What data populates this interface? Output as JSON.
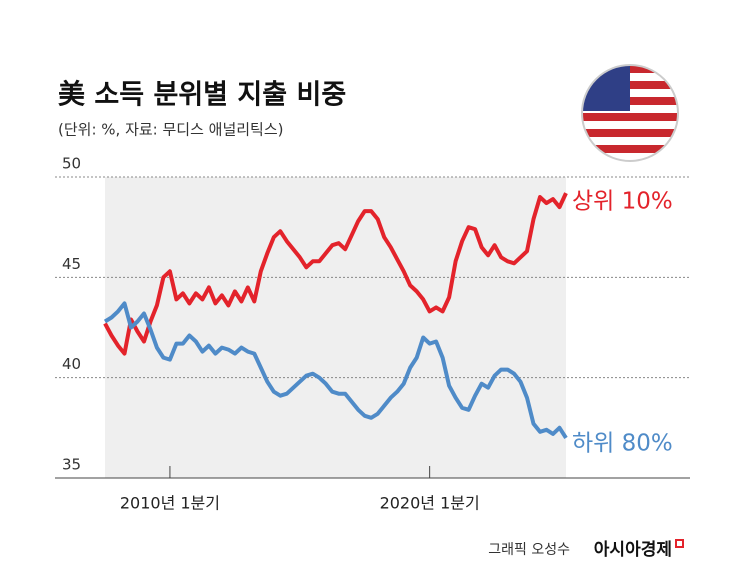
{
  "chart_data": {
    "type": "line",
    "title": "美 소득 분위별 지출 비중",
    "subtitle": "(단위: %, 자료: 무디스 애널리틱스)",
    "credit": "그래픽 오성수",
    "source_brand": "아시아경제",
    "categories": [
      null,
      null,
      null,
      null,
      null,
      null,
      null,
      null,
      null,
      null,
      "2010년 1분기",
      null,
      null,
      null,
      null,
      null,
      null,
      null,
      null,
      null,
      null,
      null,
      null,
      null,
      null,
      null,
      null,
      null,
      null,
      null,
      null,
      null,
      null,
      null,
      null,
      null,
      null,
      null,
      null,
      null,
      null,
      null,
      null,
      null,
      null,
      null,
      null,
      null,
      null,
      null,
      "2020년 1분기",
      null,
      null,
      null,
      null,
      null,
      null,
      null,
      null,
      null,
      null,
      null,
      null,
      null,
      null,
      null,
      null,
      null,
      null,
      null,
      null,
      null
    ],
    "series": [
      {
        "name": "상위 10%",
        "color": "#e3232b",
        "values": [
          42.7,
          42.1,
          41.6,
          41.2,
          42.9,
          42.3,
          41.8,
          42.8,
          43.6,
          45.0,
          45.3,
          43.9,
          44.2,
          43.7,
          44.2,
          43.9,
          44.5,
          43.7,
          44.1,
          43.6,
          44.3,
          43.8,
          44.5,
          43.8,
          45.3,
          46.2,
          47.0,
          47.3,
          46.8,
          46.4,
          46.0,
          45.5,
          45.8,
          45.8,
          46.2,
          46.6,
          46.7,
          46.4,
          47.1,
          47.8,
          48.3,
          48.3,
          47.9,
          47.0,
          46.5,
          45.9,
          45.3,
          44.6,
          44.3,
          43.9,
          43.3,
          43.5,
          43.3,
          44.0,
          45.8,
          46.8,
          47.5,
          47.4,
          46.5,
          46.1,
          46.6,
          46.0,
          45.8,
          45.7,
          46.0,
          46.3,
          47.9,
          49.0,
          48.7,
          48.9,
          48.5,
          49.2
        ]
      },
      {
        "name": "하위 80%",
        "color": "#4f8bc8",
        "values": [
          42.8,
          43.0,
          43.3,
          43.7,
          42.5,
          42.8,
          43.2,
          42.4,
          41.5,
          41.0,
          40.9,
          41.7,
          41.7,
          42.1,
          41.8,
          41.3,
          41.6,
          41.2,
          41.5,
          41.4,
          41.2,
          41.5,
          41.3,
          41.2,
          40.5,
          39.8,
          39.3,
          39.1,
          39.2,
          39.5,
          39.8,
          40.1,
          40.2,
          40.0,
          39.7,
          39.3,
          39.2,
          39.2,
          38.8,
          38.4,
          38.1,
          38.0,
          38.2,
          38.6,
          39.0,
          39.3,
          39.7,
          40.5,
          41.0,
          42.0,
          41.7,
          41.8,
          41.0,
          39.6,
          39.0,
          38.5,
          38.4,
          39.1,
          39.7,
          39.5,
          40.1,
          40.4,
          40.4,
          40.2,
          39.8,
          39.0,
          37.7,
          37.3,
          37.4,
          37.2,
          37.5,
          37.0
        ]
      }
    ],
    "ylim": [
      35,
      50
    ],
    "yticks": [
      35,
      40,
      45,
      50
    ],
    "grid": true
  }
}
